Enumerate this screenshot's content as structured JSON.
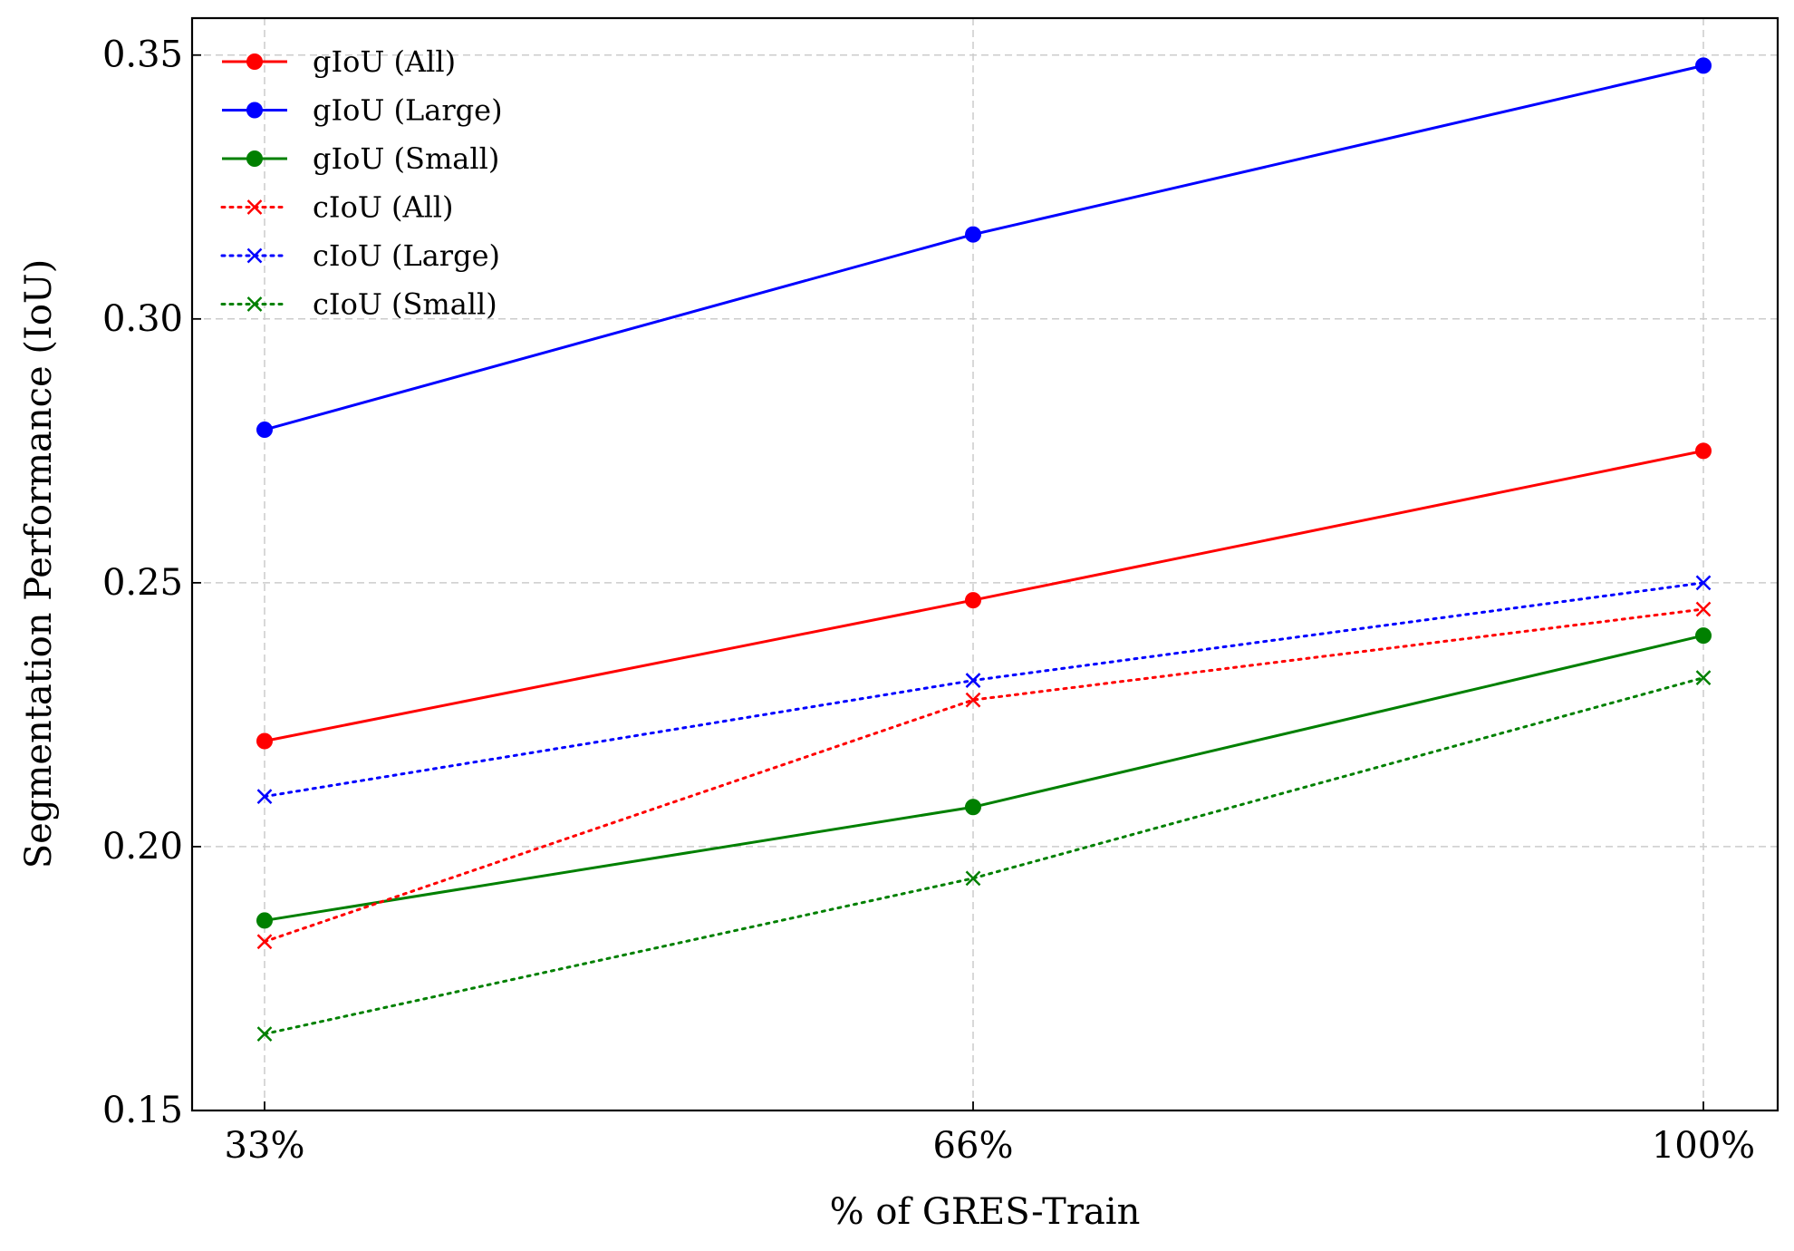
{
  "chart_data": {
    "type": "line",
    "title": "",
    "xlabel": "% of GRES-Train",
    "ylabel": "Segmentation Performance (IoU)",
    "categories": [
      "33%",
      "66%",
      "100%"
    ],
    "ylim": [
      0.15,
      0.357
    ],
    "yticks": [
      "0.15",
      "0.20",
      "0.25",
      "0.30",
      "0.35"
    ],
    "grid": true,
    "legend": "top-left",
    "series": [
      {
        "name": "gIoU (All)",
        "values": [
          0.22,
          0.2467,
          0.275
        ],
        "color": "#ff0000",
        "style": "solid",
        "marker": "circle"
      },
      {
        "name": "gIoU (Large)",
        "values": [
          0.279,
          0.316,
          0.348
        ],
        "color": "#0000ff",
        "style": "solid",
        "marker": "circle"
      },
      {
        "name": "gIoU (Small)",
        "values": [
          0.186,
          0.2075,
          0.24
        ],
        "color": "#008000",
        "style": "solid",
        "marker": "circle"
      },
      {
        "name": "cIoU (All)",
        "values": [
          0.182,
          0.2278,
          0.245
        ],
        "color": "#ff0000",
        "style": "dotted",
        "marker": "x"
      },
      {
        "name": "cIoU (Large)",
        "values": [
          0.2095,
          0.2315,
          0.25
        ],
        "color": "#0000ff",
        "style": "dotted",
        "marker": "x"
      },
      {
        "name": "cIoU (Small)",
        "values": [
          0.1645,
          0.194,
          0.232
        ],
        "color": "#008000",
        "style": "dotted",
        "marker": "x"
      }
    ]
  }
}
